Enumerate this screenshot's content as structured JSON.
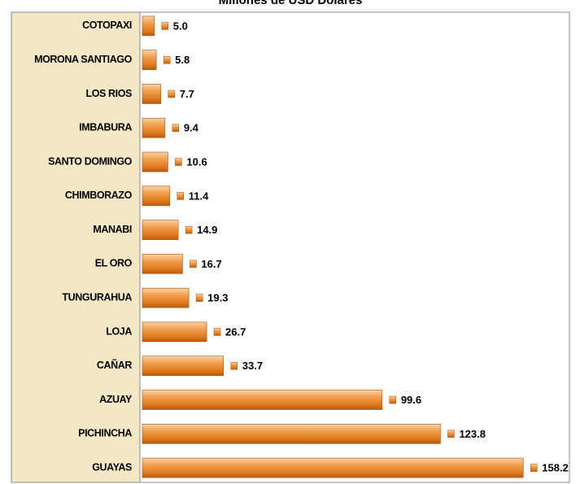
{
  "chart_data": {
    "type": "bar",
    "orientation": "horizontal",
    "title": "Millones de USD Dólares",
    "categories": [
      "COTOPAXI",
      "MORONA SANTIAGO",
      "LOS RIOS",
      "IMBABURA",
      "SANTO DOMINGO",
      "CHIMBORAZO",
      "MANABI",
      "EL ORO",
      "TUNGURAHUA",
      "LOJA",
      "CAÑAR",
      "AZUAY",
      "PICHINCHA",
      "GUAYAS"
    ],
    "values": [
      5.0,
      5.8,
      7.7,
      9.4,
      10.6,
      11.4,
      14.9,
      16.7,
      19.3,
      26.7,
      33.7,
      99.6,
      123.8,
      158.2
    ],
    "value_labels": [
      "5.0",
      "5.8",
      "7.7",
      "9.4",
      "10.6",
      "11.4",
      "14.9",
      "16.7",
      "19.3",
      "26.7",
      "33.7",
      "99.6",
      "123.8",
      "158.2"
    ],
    "color": "#e8862a",
    "xlim": [
      0,
      175
    ]
  }
}
